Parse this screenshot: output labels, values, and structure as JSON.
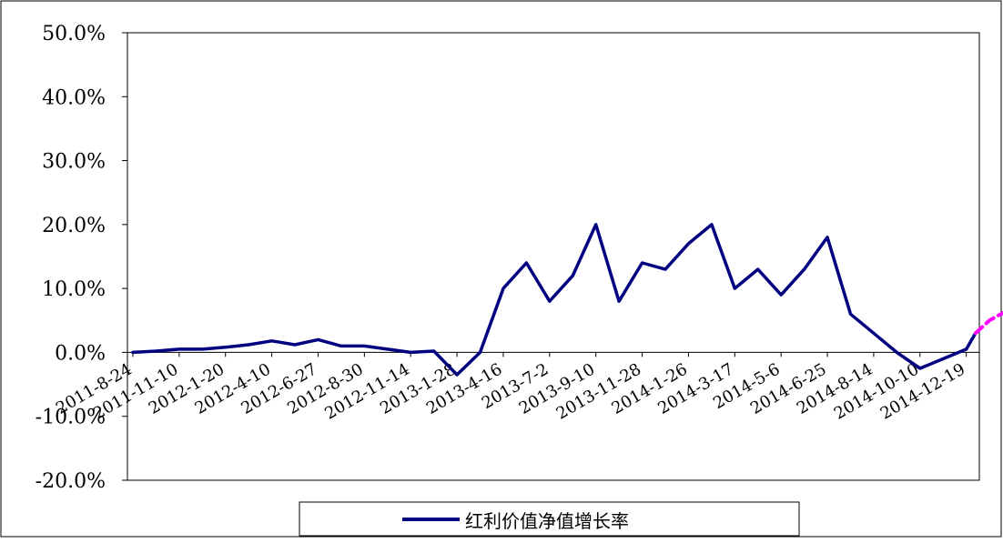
{
  "chart_data": {
    "type": "line",
    "title": "",
    "xlabel": "",
    "ylabel": "",
    "ylim": [
      -20,
      50
    ],
    "y_ticks": [
      -20,
      -10,
      0,
      10,
      20,
      30,
      40,
      50
    ],
    "y_tick_labels": [
      "-20.0%",
      "-10.0%",
      "0.0%",
      "10.0%",
      "20.0%",
      "30.0%",
      "40.0%",
      "50.0%"
    ],
    "x_tick_labels": [
      "2011-8-24",
      "2011-11-10",
      "2012-1-20",
      "2012-4-10",
      "2012-6-27",
      "2012-8-30",
      "2012-11-14",
      "2013-1-28",
      "2013-4-16",
      "2013-7-2",
      "2013-9-10",
      "2013-11-28",
      "2014-1-26",
      "2014-3-17",
      "2014-5-6",
      "2014-6-25",
      "2014-8-14",
      "2014-10-10",
      "2014-12-19"
    ],
    "grid": false,
    "legend_position": "bottom",
    "series": [
      {
        "name": "红利价值净值增长率",
        "color": "#000080",
        "style": "solid",
        "x": [
          0,
          0.5,
          1,
          1.5,
          2,
          2.5,
          3,
          3.5,
          4,
          4.5,
          5,
          5.5,
          6,
          6.5,
          7,
          7.5,
          8,
          8.5,
          9,
          9.5,
          10,
          10.5,
          11,
          11.5,
          12,
          12.5,
          13,
          13.5,
          14,
          14.5,
          15,
          15.5,
          16,
          16.5,
          17,
          17.5,
          18,
          18.2
        ],
        "values": [
          0.0,
          0.2,
          0.5,
          0.5,
          0.8,
          1.2,
          1.8,
          1.2,
          2.0,
          1.0,
          1.0,
          0.5,
          0.0,
          0.2,
          -3.5,
          0.0,
          10.0,
          14.0,
          8.0,
          12.0,
          20.0,
          8.0,
          14.0,
          13.0,
          17.0,
          20.0,
          10.0,
          13.0,
          9.0,
          13.0,
          18.0,
          6.0,
          3.0,
          0.0,
          -2.5,
          -1.0,
          0.5,
          3.0
        ]
      },
      {
        "name": "",
        "color": "#FF00FF",
        "style": "dashed",
        "x": [
          18.2,
          18.5,
          19,
          19.3
        ],
        "values": [
          3.0,
          5.0,
          7.0,
          6.0
        ]
      }
    ]
  }
}
